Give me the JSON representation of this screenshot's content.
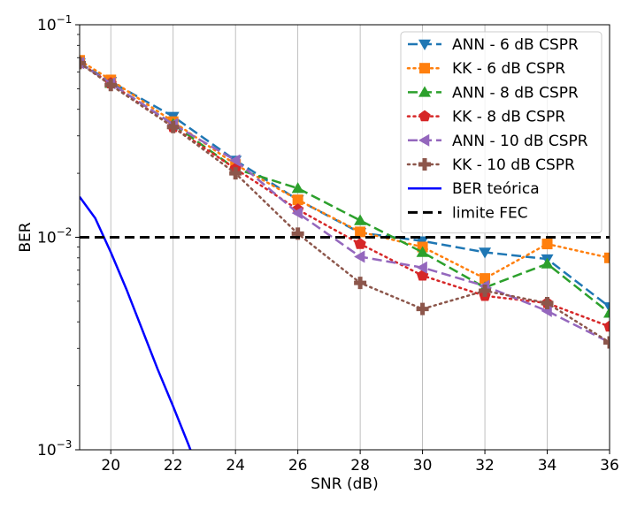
{
  "chart_data": {
    "type": "line",
    "xlabel": "SNR (dB)",
    "ylabel": "BER",
    "xlim": [
      19,
      36
    ],
    "ylim": [
      0.001,
      0.1
    ],
    "yscale": "log",
    "grid": "vertical",
    "legend_position": "top-right",
    "x_ticks": [
      {
        "value": 20,
        "label": "20"
      },
      {
        "value": 22,
        "label": "22"
      },
      {
        "value": 24,
        "label": "24"
      },
      {
        "value": 26,
        "label": "26"
      },
      {
        "value": 28,
        "label": "28"
      },
      {
        "value": 30,
        "label": "30"
      },
      {
        "value": 32,
        "label": "32"
      },
      {
        "value": 34,
        "label": "34"
      },
      {
        "value": 36,
        "label": "36"
      }
    ],
    "y_ticks": [
      {
        "value": 0.1,
        "base": "10",
        "exp": "−1"
      },
      {
        "value": 0.01,
        "base": "10",
        "exp": "−2"
      },
      {
        "value": 0.001,
        "base": "10",
        "exp": "−3"
      }
    ],
    "series": [
      {
        "name": "ANN - 6 dB CSPR",
        "color": "#1f77b4",
        "dash": "dashed",
        "marker": "triangle-down",
        "x": [
          19,
          20,
          22,
          24,
          26,
          28,
          30,
          32,
          34,
          36
        ],
        "y": [
          0.066,
          0.054,
          0.037,
          0.023,
          0.015,
          0.0105,
          0.0096,
          0.0085,
          0.0079,
          0.0047
        ]
      },
      {
        "name": "KK - 6 dB CSPR",
        "color": "#ff7f0e",
        "dash": "dotted",
        "marker": "square",
        "x": [
          19,
          20,
          22,
          24,
          26,
          28,
          30,
          32,
          34,
          36
        ],
        "y": [
          0.068,
          0.055,
          0.035,
          0.022,
          0.015,
          0.0106,
          0.009,
          0.0064,
          0.0093,
          0.008
        ]
      },
      {
        "name": "ANN - 8 dB CSPR",
        "color": "#2ca02c",
        "dash": "dashed",
        "marker": "triangle-up",
        "x": [
          19,
          20,
          22,
          24,
          26,
          28,
          30,
          32,
          34,
          36
        ],
        "y": [
          0.066,
          0.053,
          0.034,
          0.021,
          0.017,
          0.012,
          0.0085,
          0.0058,
          0.0075,
          0.0044
        ]
      },
      {
        "name": "KK - 8 dB CSPR",
        "color": "#d62728",
        "dash": "dotted",
        "marker": "pentagon",
        "x": [
          19,
          20,
          22,
          24,
          26,
          28,
          30,
          32,
          34,
          36
        ],
        "y": [
          0.066,
          0.053,
          0.033,
          0.021,
          0.0135,
          0.0093,
          0.0066,
          0.0053,
          0.0049,
          0.0038
        ]
      },
      {
        "name": "ANN - 10 dB CSPR",
        "color": "#9467bd",
        "dash": "dashed",
        "marker": "triangle-left",
        "x": [
          19,
          20,
          22,
          24,
          26,
          28,
          30,
          32,
          34,
          36
        ],
        "y": [
          0.066,
          0.053,
          0.034,
          0.023,
          0.013,
          0.0081,
          0.0072,
          0.0059,
          0.0045,
          0.0032
        ]
      },
      {
        "name": "KK - 10 dB CSPR",
        "color": "#8c564b",
        "dash": "dotted",
        "marker": "plus",
        "x": [
          19,
          20,
          22,
          24,
          26,
          28,
          30,
          32,
          34,
          36
        ],
        "y": [
          0.066,
          0.052,
          0.033,
          0.02,
          0.0104,
          0.0061,
          0.0046,
          0.0056,
          0.0049,
          0.0032
        ]
      },
      {
        "name": "BER teórica",
        "color": "#0000ff",
        "dash": "solid",
        "marker": "none",
        "x": [
          19,
          19.5,
          20,
          20.5,
          21,
          21.5,
          22,
          22.5,
          22.7
        ],
        "y": [
          0.0155,
          0.0123,
          0.0085,
          0.0057,
          0.0037,
          0.0024,
          0.0016,
          0.00105,
          0.00088
        ]
      },
      {
        "name": "limite FEC",
        "color": "#000000",
        "dash": "dashed-heavy",
        "marker": "none",
        "x": [
          19,
          36
        ],
        "y": [
          0.01,
          0.01
        ]
      }
    ]
  }
}
